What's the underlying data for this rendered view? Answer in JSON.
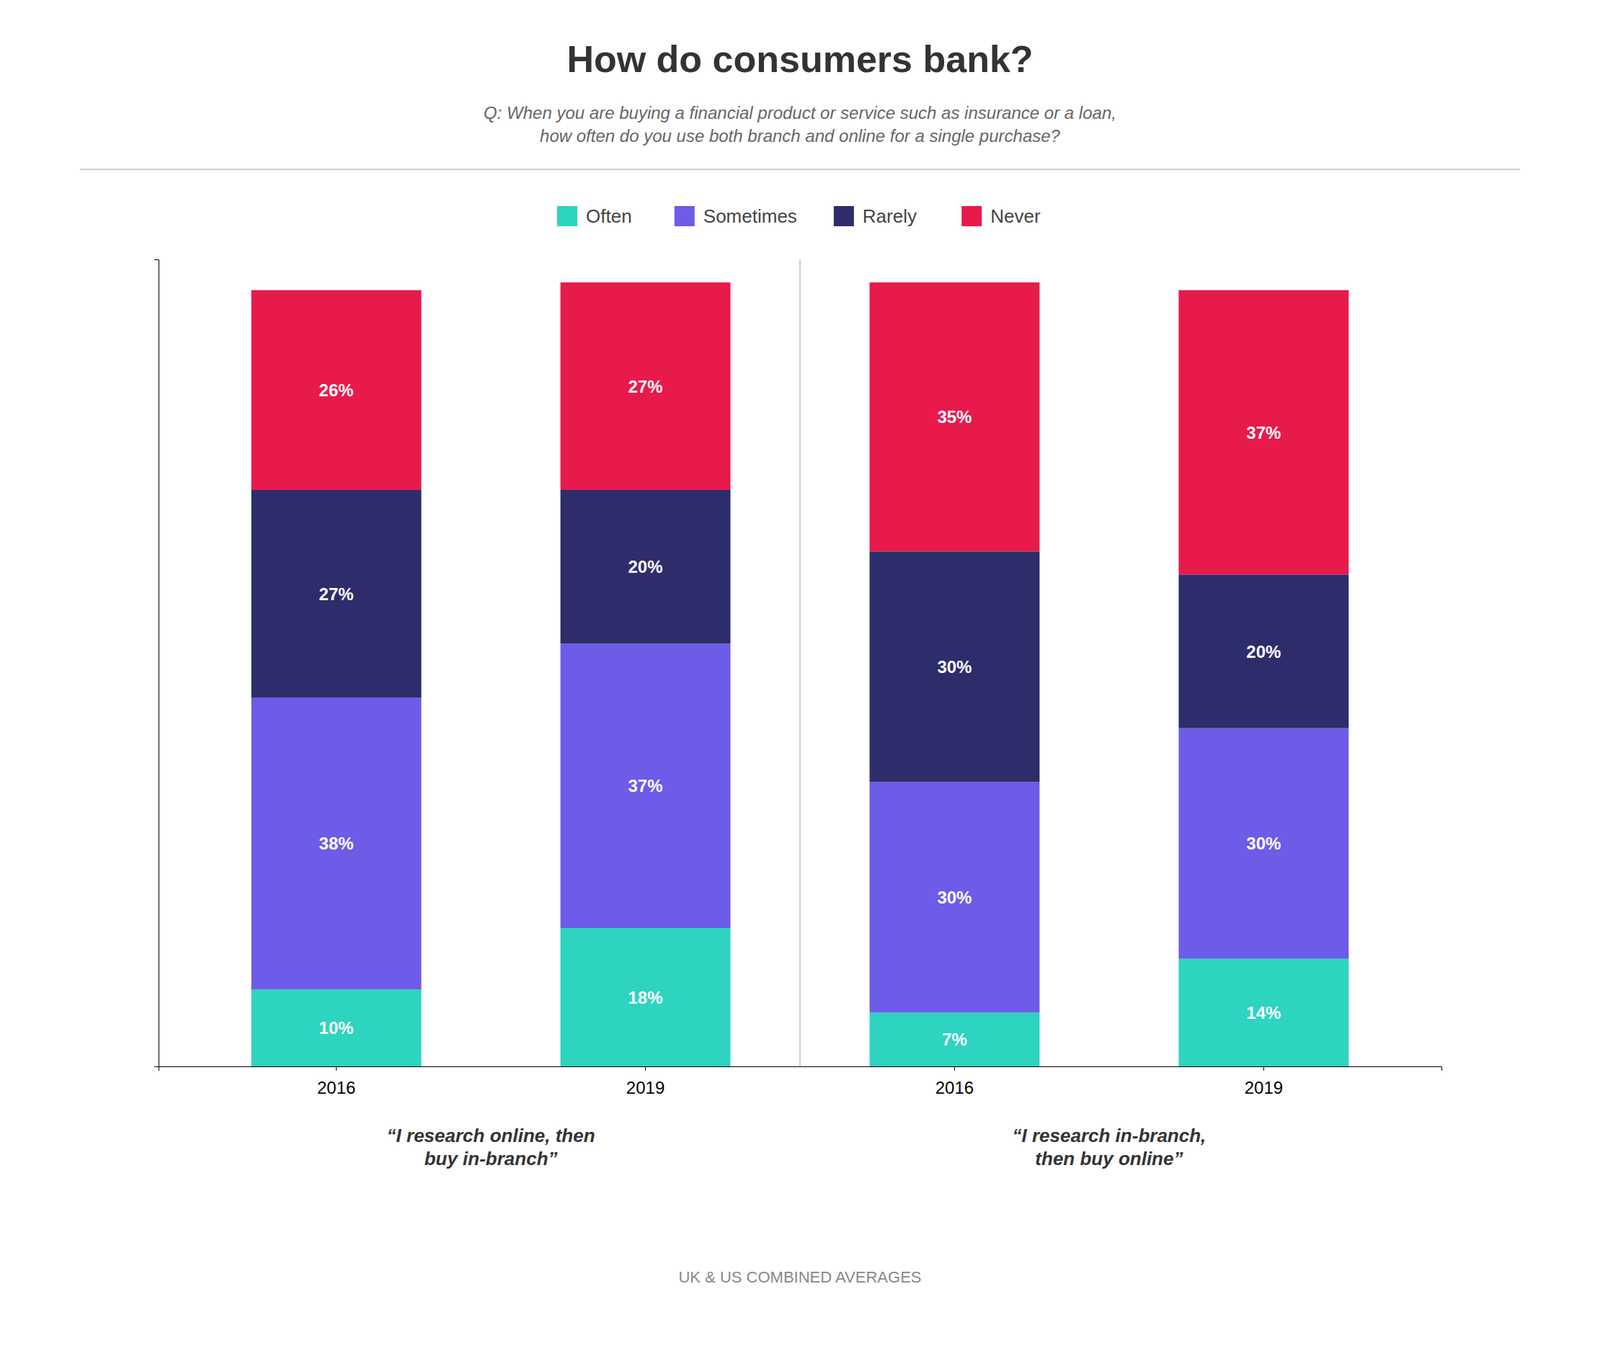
{
  "chart_data": {
    "type": "bar",
    "stacked": true,
    "title": "How do consumers bank?",
    "subtitle": "Q: When you are buying a financial product or service such as insurance or a loan,\nhow often do you use both branch and online for a single purchase?",
    "categories": [
      "2016",
      "2019",
      "2016",
      "2019"
    ],
    "group_labels": [
      "“I research online, then\nbuy in-branch”",
      "“I research in-branch,\nthen buy online”"
    ],
    "footer": "UK & US COMBINED AVERAGES",
    "series": [
      {
        "name": "Often",
        "color": "#2dd4bf",
        "values": [
          10,
          18,
          7,
          14
        ],
        "value_labels": [
          "10%",
          "18%",
          "7%",
          "14%"
        ]
      },
      {
        "name": "Sometimes",
        "color": "#6c5ce7",
        "values": [
          38,
          37,
          30,
          30
        ],
        "value_labels": [
          "38%",
          "37%",
          "30%",
          "30%"
        ]
      },
      {
        "name": "Rarely",
        "color": "#2d2d6b",
        "values": [
          27,
          20,
          30,
          20
        ],
        "value_labels": [
          "27%",
          "20%",
          "30%",
          "20%"
        ]
      },
      {
        "name": "Never",
        "color": "#e8194b",
        "values": [
          26,
          27,
          35,
          37
        ],
        "value_labels": [
          "26%",
          "27%",
          "35%",
          "37%"
        ]
      }
    ],
    "ylim": [
      0,
      105
    ],
    "yticks": [],
    "tick_labels": "x",
    "data_labels": true,
    "legend": "top",
    "grid": false
  }
}
